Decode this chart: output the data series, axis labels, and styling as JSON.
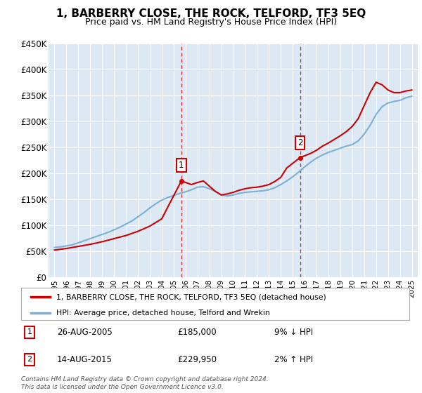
{
  "title": "1, BARBERRY CLOSE, THE ROCK, TELFORD, TF3 5EQ",
  "subtitle": "Price paid vs. HM Land Registry's House Price Index (HPI)",
  "legend_label_red": "1, BARBERRY CLOSE, THE ROCK, TELFORD, TF3 5EQ (detached house)",
  "legend_label_blue": "HPI: Average price, detached house, Telford and Wrekin",
  "footer": "Contains HM Land Registry data © Crown copyright and database right 2024.\nThis data is licensed under the Open Government Licence v3.0.",
  "transactions": [
    {
      "num": 1,
      "date": "26-AUG-2005",
      "price": "£185,000",
      "hpi": "9% ↓ HPI",
      "year": 2005.65
    },
    {
      "num": 2,
      "date": "14-AUG-2015",
      "price": "£229,950",
      "hpi": "2% ↑ HPI",
      "year": 2015.62
    }
  ],
  "ylim": [
    0,
    450000
  ],
  "yticks": [
    0,
    50000,
    100000,
    150000,
    200000,
    250000,
    300000,
    350000,
    400000,
    450000
  ],
  "ytick_labels": [
    "£0",
    "£50K",
    "£100K",
    "£150K",
    "£200K",
    "£250K",
    "£300K",
    "£350K",
    "£400K",
    "£450K"
  ],
  "xlim": [
    1994.5,
    2025.5
  ],
  "hpi_years": [
    1995.0,
    1995.5,
    1996.0,
    1996.5,
    1997.0,
    1997.5,
    1998.0,
    1998.5,
    1999.0,
    1999.5,
    2000.0,
    2000.5,
    2001.0,
    2001.5,
    2002.0,
    2002.5,
    2003.0,
    2003.5,
    2004.0,
    2004.5,
    2005.0,
    2005.5,
    2006.0,
    2006.5,
    2007.0,
    2007.5,
    2008.0,
    2008.5,
    2009.0,
    2009.5,
    2010.0,
    2010.5,
    2011.0,
    2011.5,
    2012.0,
    2012.5,
    2013.0,
    2013.5,
    2014.0,
    2014.5,
    2015.0,
    2015.5,
    2016.0,
    2016.5,
    2017.0,
    2017.5,
    2018.0,
    2018.5,
    2019.0,
    2019.5,
    2020.0,
    2020.5,
    2021.0,
    2021.5,
    2022.0,
    2022.5,
    2023.0,
    2023.5,
    2024.0,
    2024.5,
    2025.0
  ],
  "hpi_values": [
    57000,
    58000,
    60000,
    62000,
    66000,
    70000,
    74000,
    78000,
    82000,
    86000,
    91000,
    96000,
    102000,
    108000,
    116000,
    124000,
    133000,
    141000,
    148000,
    153000,
    157000,
    161000,
    164000,
    168000,
    173000,
    174000,
    170000,
    165000,
    158000,
    156000,
    158000,
    161000,
    163000,
    164000,
    165000,
    166000,
    168000,
    172000,
    178000,
    185000,
    193000,
    202000,
    212000,
    221000,
    229000,
    235000,
    240000,
    244000,
    248000,
    252000,
    255000,
    262000,
    275000,
    292000,
    313000,
    328000,
    335000,
    338000,
    340000,
    345000,
    348000
  ],
  "red_years": [
    1995.0,
    1996.0,
    1997.0,
    1998.0,
    1999.0,
    2000.0,
    2001.0,
    2002.0,
    2003.0,
    2004.0,
    2005.65,
    2006.5,
    2007.0,
    2007.5,
    2008.0,
    2008.5,
    2009.0,
    2009.5,
    2010.0,
    2010.5,
    2011.0,
    2011.5,
    2012.0,
    2012.5,
    2013.0,
    2013.5,
    2014.0,
    2014.5,
    2015.62,
    2016.5,
    2017.0,
    2017.5,
    2018.0,
    2018.5,
    2019.0,
    2019.5,
    2020.0,
    2020.5,
    2021.0,
    2021.5,
    2022.0,
    2022.5,
    2023.0,
    2023.5,
    2024.0,
    2024.5,
    2025.0
  ],
  "red_values": [
    52000,
    55000,
    59000,
    63000,
    68000,
    74000,
    80000,
    88000,
    98000,
    112000,
    185000,
    178000,
    182000,
    185000,
    175000,
    165000,
    158000,
    160000,
    163000,
    167000,
    170000,
    172000,
    173000,
    175000,
    178000,
    184000,
    192000,
    210000,
    229950,
    238000,
    244000,
    252000,
    258000,
    265000,
    272000,
    280000,
    290000,
    305000,
    330000,
    355000,
    375000,
    370000,
    360000,
    355000,
    355000,
    358000,
    360000
  ],
  "bg_color": "#ffffff",
  "plot_bg_color": "#dce9f5",
  "grid_color": "#ffffff",
  "red_color": "#cc0000",
  "blue_color": "#7bafd4",
  "vline_color": "#cc0000",
  "box_color": "#cc0000",
  "title_fontsize": 11,
  "subtitle_fontsize": 9
}
